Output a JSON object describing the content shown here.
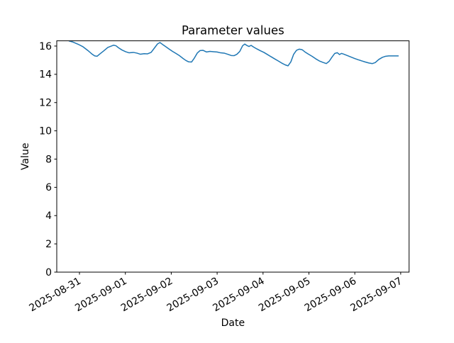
{
  "figure": {
    "title": "Parameter values",
    "xlabel": "Date",
    "ylabel": "Value"
  },
  "chart_data": {
    "type": "line",
    "title": "Parameter values",
    "xlabel": "Date",
    "ylabel": "Value",
    "line_color": "#1f77b4",
    "background_color": "#ffffff",
    "grid": false,
    "legend_position": "none",
    "x_unit": "days since 2025-08-31 00:00",
    "xlim_days": [
      -0.495,
      7.183
    ],
    "ylim": [
      0,
      16.37
    ],
    "xtick_days": [
      0,
      1,
      2,
      3,
      4,
      5,
      6,
      7
    ],
    "xtick_labels": [
      "2025-08-31",
      "2025-09-01",
      "2025-09-02",
      "2025-09-03",
      "2025-09-04",
      "2025-09-05",
      "2025-09-06",
      "2025-09-07"
    ],
    "ytick_values": [
      0,
      2,
      4,
      6,
      8,
      10,
      12,
      14,
      16
    ],
    "series": [
      {
        "name": "Parameter values",
        "points": [
          [
            -0.232,
            16.37
          ],
          [
            -0.139,
            16.28
          ],
          [
            -0.031,
            16.13
          ],
          [
            0.077,
            15.95
          ],
          [
            0.185,
            15.68
          ],
          [
            0.278,
            15.42
          ],
          [
            0.332,
            15.3
          ],
          [
            0.386,
            15.28
          ],
          [
            0.448,
            15.45
          ],
          [
            0.526,
            15.65
          ],
          [
            0.618,
            15.9
          ],
          [
            0.696,
            16.0
          ],
          [
            0.742,
            16.06
          ],
          [
            0.796,
            16.02
          ],
          [
            0.85,
            15.88
          ],
          [
            0.927,
            15.72
          ],
          [
            1.005,
            15.6
          ],
          [
            1.082,
            15.52
          ],
          [
            1.175,
            15.55
          ],
          [
            1.252,
            15.5
          ],
          [
            1.329,
            15.42
          ],
          [
            1.407,
            15.46
          ],
          [
            1.484,
            15.45
          ],
          [
            1.561,
            15.55
          ],
          [
            1.638,
            15.88
          ],
          [
            1.7,
            16.15
          ],
          [
            1.754,
            16.25
          ],
          [
            1.808,
            16.12
          ],
          [
            1.87,
            15.98
          ],
          [
            1.948,
            15.8
          ],
          [
            2.025,
            15.63
          ],
          [
            2.102,
            15.48
          ],
          [
            2.179,
            15.32
          ],
          [
            2.257,
            15.12
          ],
          [
            2.319,
            14.98
          ],
          [
            2.38,
            14.88
          ],
          [
            2.442,
            14.87
          ],
          [
            2.504,
            15.15
          ],
          [
            2.566,
            15.5
          ],
          [
            2.628,
            15.68
          ],
          [
            2.69,
            15.7
          ],
          [
            2.767,
            15.58
          ],
          [
            2.844,
            15.62
          ],
          [
            2.921,
            15.6
          ],
          [
            2.999,
            15.58
          ],
          [
            3.076,
            15.52
          ],
          [
            3.153,
            15.5
          ],
          [
            3.23,
            15.42
          ],
          [
            3.308,
            15.33
          ],
          [
            3.369,
            15.32
          ],
          [
            3.431,
            15.42
          ],
          [
            3.493,
            15.62
          ],
          [
            3.555,
            16.02
          ],
          [
            3.601,
            16.14
          ],
          [
            3.648,
            16.04
          ],
          [
            3.694,
            15.97
          ],
          [
            3.74,
            16.05
          ],
          [
            3.794,
            15.93
          ],
          [
            3.864,
            15.8
          ],
          [
            3.941,
            15.67
          ],
          [
            4.019,
            15.55
          ],
          [
            4.096,
            15.4
          ],
          [
            4.173,
            15.25
          ],
          [
            4.25,
            15.1
          ],
          [
            4.328,
            14.95
          ],
          [
            4.405,
            14.8
          ],
          [
            4.482,
            14.67
          ],
          [
            4.544,
            14.6
          ],
          [
            4.606,
            14.88
          ],
          [
            4.668,
            15.42
          ],
          [
            4.73,
            15.7
          ],
          [
            4.791,
            15.78
          ],
          [
            4.853,
            15.74
          ],
          [
            4.915,
            15.58
          ],
          [
            4.992,
            15.42
          ],
          [
            5.07,
            15.27
          ],
          [
            5.147,
            15.1
          ],
          [
            5.224,
            14.95
          ],
          [
            5.301,
            14.85
          ],
          [
            5.379,
            14.76
          ],
          [
            5.441,
            14.92
          ],
          [
            5.503,
            15.22
          ],
          [
            5.564,
            15.48
          ],
          [
            5.618,
            15.53
          ],
          [
            5.665,
            15.4
          ],
          [
            5.711,
            15.48
          ],
          [
            5.765,
            15.42
          ],
          [
            5.843,
            15.32
          ],
          [
            5.92,
            15.22
          ],
          [
            5.997,
            15.12
          ],
          [
            6.074,
            15.03
          ],
          [
            6.152,
            14.95
          ],
          [
            6.229,
            14.87
          ],
          [
            6.306,
            14.8
          ],
          [
            6.383,
            14.76
          ],
          [
            6.445,
            14.83
          ],
          [
            6.522,
            15.05
          ],
          [
            6.6,
            15.2
          ],
          [
            6.662,
            15.27
          ],
          [
            6.739,
            15.3
          ],
          [
            6.816,
            15.3
          ],
          [
            6.893,
            15.3
          ],
          [
            6.955,
            15.3
          ]
        ]
      }
    ]
  }
}
